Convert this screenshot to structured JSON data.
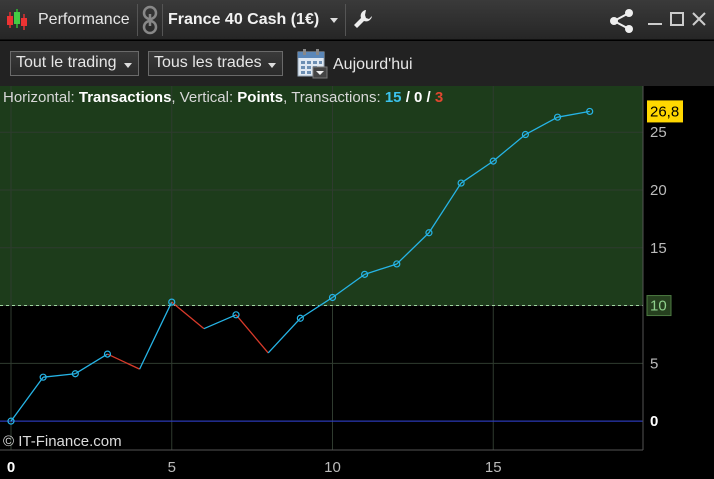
{
  "titlebar": {
    "app_title": "Performance",
    "instrument": "France 40 Cash (1€)"
  },
  "toolbar": {
    "trading_filter": "Tout le trading",
    "trades_filter": "Tous les trades",
    "date_label": "Aujourd'hui"
  },
  "info_bar": {
    "horizontal_label": "Horizontal: ",
    "horizontal_value": "Transactions",
    "vertical_label": ", Vertical: ",
    "vertical_value": "Points",
    "transactions_label": ", Transactions: ",
    "winning": "15",
    "sep1": " / ",
    "neutral": "0",
    "sep2": " / ",
    "losing": "3"
  },
  "copyright": "© IT-Finance.com",
  "colors": {
    "profit_zone": "#1d3c1b",
    "winning_line": "#26b4e6",
    "losing_line": "#d83a2a",
    "zero_line": "#2d3cd6",
    "last_value_badge": "#ffd700"
  },
  "chart_data": {
    "type": "line",
    "xlabel": "Transactions",
    "ylabel": "Points",
    "x": [
      0,
      1,
      2,
      3,
      4,
      5,
      6,
      7,
      8,
      9,
      10,
      11,
      12,
      13,
      14,
      15,
      16,
      17,
      18
    ],
    "y": [
      0,
      3.8,
      4.1,
      5.8,
      4.5,
      10.3,
      8.0,
      9.2,
      5.9,
      8.9,
      10.7,
      12.7,
      13.6,
      16.3,
      20.6,
      22.5,
      24.8,
      26.3,
      26.8
    ],
    "losing_trades": [
      4,
      6,
      8
    ],
    "xlim": [
      0,
      20
    ],
    "ylim": [
      -2.5,
      29
    ],
    "x_ticks": [
      "0",
      "5",
      "10",
      "15"
    ],
    "y_ticks": [
      "0",
      "5",
      "10",
      "15",
      "20",
      "25"
    ],
    "reference_level": "10",
    "last_value": "26,8",
    "grid": true
  }
}
